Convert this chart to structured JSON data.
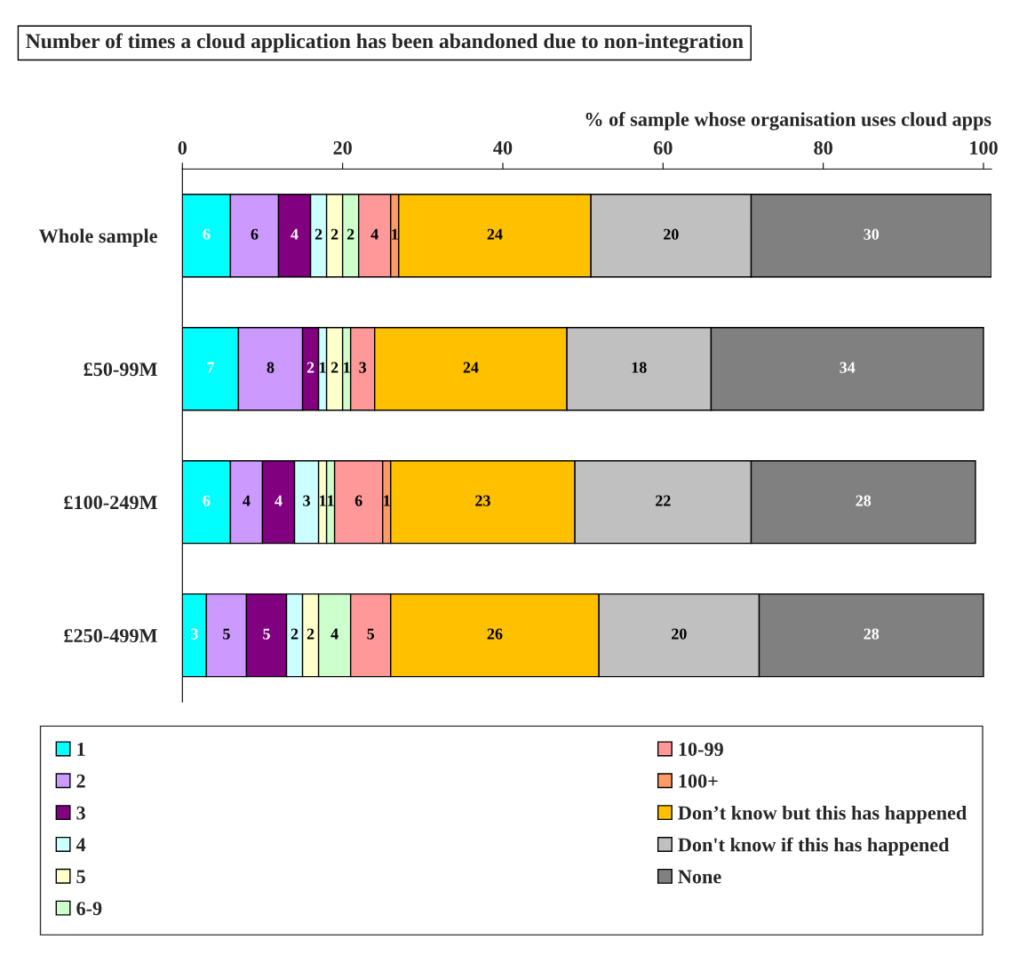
{
  "chart_data": {
    "type": "bar",
    "orientation": "horizontal",
    "stacked": true,
    "title": "Number of times a cloud application has been abandoned due to non-integration",
    "xlabel": "% of sample whose organisation uses cloud apps",
    "categories": [
      "Whole sample",
      "£50-99M",
      "£100-249M",
      "£250-499M"
    ],
    "series": [
      {
        "name": "1",
        "color": "#00ffff",
        "values": [
          6,
          7,
          6,
          3
        ]
      },
      {
        "name": "2",
        "color": "#cc99ff",
        "values": [
          6,
          8,
          4,
          5
        ]
      },
      {
        "name": "3",
        "color": "#800080",
        "values": [
          4,
          2,
          4,
          5
        ]
      },
      {
        "name": "4",
        "color": "#ccffff",
        "values": [
          2,
          1,
          3,
          2
        ]
      },
      {
        "name": "5",
        "color": "#ffffcc",
        "values": [
          2,
          2,
          1,
          2
        ]
      },
      {
        "name": "6-9",
        "color": "#ccffcc",
        "values": [
          2,
          1,
          1,
          4
        ]
      },
      {
        "name": "10-99",
        "color": "#ff9999",
        "values": [
          4,
          3,
          6,
          5
        ]
      },
      {
        "name": "100+",
        "color": "#ff9966",
        "values": [
          1,
          null,
          1,
          null
        ]
      },
      {
        "name": "Don’t know but this has happened",
        "color": "#ffc000",
        "values": [
          24,
          24,
          23,
          26
        ]
      },
      {
        "name": "Don't know if this has happened",
        "color": "#c0c0c0",
        "values": [
          20,
          18,
          22,
          20
        ]
      },
      {
        "name": "None",
        "color": "#808080",
        "values": [
          30,
          34,
          28,
          28
        ]
      }
    ],
    "xlim": [
      0,
      101
    ],
    "xticks": [
      0,
      20,
      40,
      60,
      80,
      100
    ],
    "data_labels": true,
    "legend": "bottom",
    "grid": false
  }
}
